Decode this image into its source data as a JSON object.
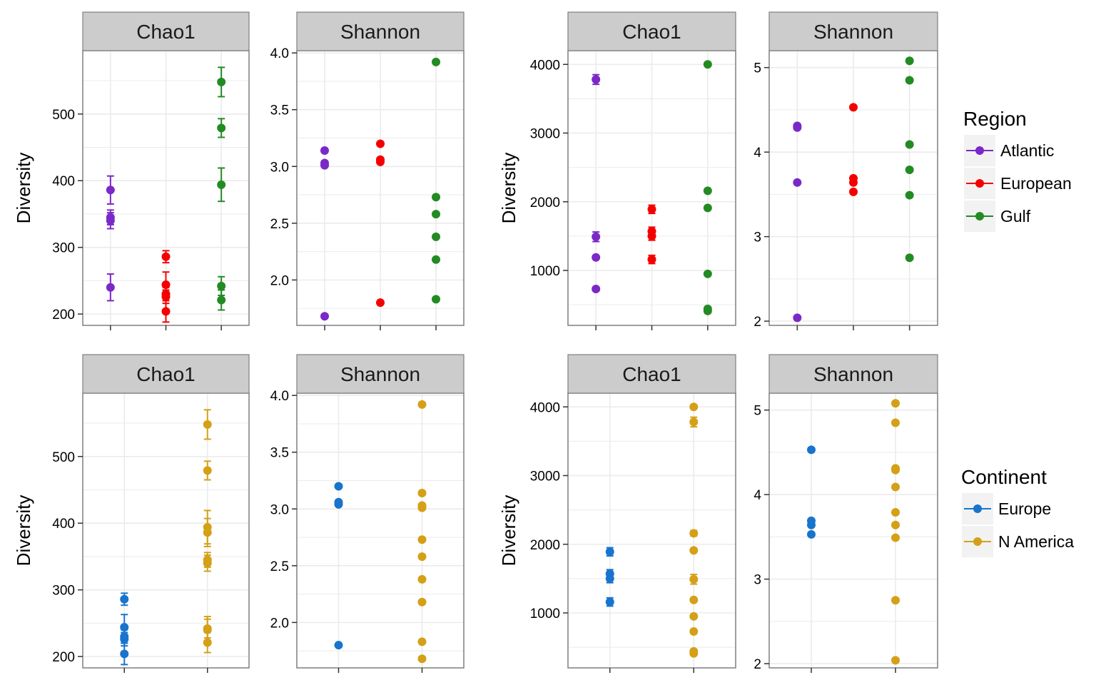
{
  "colors": {
    "Atlantic": "#7B28C8",
    "European": "#F50000",
    "Gulf": "#238B23",
    "Europe": "#1874CD",
    "N America": "#D4A017",
    "strip_bg": "#CCCCCC",
    "panel_border": "#7F7F7F",
    "grid": "#EBEBEB"
  },
  "legends": [
    {
      "title": "Region",
      "entries": [
        "Atlantic",
        "European",
        "Gulf"
      ]
    },
    {
      "title": "Continent",
      "entries": [
        "Europe",
        "N America"
      ]
    }
  ],
  "chart_data": [
    {
      "type": "scatter",
      "strip": "Chao1",
      "ylabel": "Diversity",
      "ylim": [
        183,
        595
      ],
      "yticks": [
        200,
        300,
        400,
        500
      ],
      "ntick_x": 3,
      "points": [
        {
          "g": 1,
          "y": 386,
          "lo": 365,
          "hi": 407,
          "c": "Atlantic"
        },
        {
          "g": 1,
          "y": 345,
          "lo": 334,
          "hi": 356,
          "c": "Atlantic"
        },
        {
          "g": 1,
          "y": 340,
          "lo": 328,
          "hi": 352,
          "c": "Atlantic"
        },
        {
          "g": 1,
          "y": 240,
          "lo": 220,
          "hi": 260,
          "c": "Atlantic"
        },
        {
          "g": 2,
          "y": 286,
          "lo": 277,
          "hi": 295,
          "c": "European"
        },
        {
          "g": 2,
          "y": 244,
          "lo": 225,
          "hi": 263,
          "c": "European"
        },
        {
          "g": 2,
          "y": 230,
          "lo": 220,
          "hi": 240,
          "c": "European"
        },
        {
          "g": 2,
          "y": 226,
          "lo": 216,
          "hi": 236,
          "c": "European"
        },
        {
          "g": 2,
          "y": 204,
          "lo": 188,
          "hi": 220,
          "c": "European"
        },
        {
          "g": 3,
          "y": 548,
          "lo": 526,
          "hi": 570,
          "c": "Gulf"
        },
        {
          "g": 3,
          "y": 479,
          "lo": 465,
          "hi": 493,
          "c": "Gulf"
        },
        {
          "g": 3,
          "y": 394,
          "lo": 369,
          "hi": 419,
          "c": "Gulf"
        },
        {
          "g": 3,
          "y": 242,
          "lo": 228,
          "hi": 256,
          "c": "Gulf"
        },
        {
          "g": 3,
          "y": 221,
          "lo": 206,
          "hi": 236,
          "c": "Gulf"
        }
      ]
    },
    {
      "type": "scatter",
      "strip": "Shannon",
      "ylabel": "",
      "ylim": [
        1.6,
        4.02
      ],
      "yticks": [
        "2.0",
        "2.5",
        "3.0",
        "3.5",
        "4.0"
      ],
      "ntick_x": 3,
      "points": [
        {
          "g": 1,
          "y": 3.14,
          "c": "Atlantic"
        },
        {
          "g": 1,
          "y": 3.03,
          "c": "Atlantic"
        },
        {
          "g": 1,
          "y": 3.01,
          "c": "Atlantic"
        },
        {
          "g": 1,
          "y": 1.68,
          "c": "Atlantic"
        },
        {
          "g": 2,
          "y": 3.2,
          "c": "European"
        },
        {
          "g": 2,
          "y": 3.06,
          "c": "European"
        },
        {
          "g": 2,
          "y": 3.04,
          "c": "European"
        },
        {
          "g": 2,
          "y": 1.8,
          "c": "European"
        },
        {
          "g": 3,
          "y": 3.92,
          "c": "Gulf"
        },
        {
          "g": 3,
          "y": 2.73,
          "c": "Gulf"
        },
        {
          "g": 3,
          "y": 2.58,
          "c": "Gulf"
        },
        {
          "g": 3,
          "y": 2.38,
          "c": "Gulf"
        },
        {
          "g": 3,
          "y": 2.18,
          "c": "Gulf"
        },
        {
          "g": 3,
          "y": 1.83,
          "c": "Gulf"
        }
      ]
    },
    {
      "type": "scatter",
      "strip": "Chao1",
      "ylabel": "Diversity",
      "ylim": [
        200,
        4200
      ],
      "yticks": [
        1000,
        2000,
        3000,
        4000
      ],
      "ntick_x": 3,
      "points": [
        {
          "g": 1,
          "y": 3780,
          "lo": 3710,
          "hi": 3850,
          "c": "Atlantic"
        },
        {
          "g": 1,
          "y": 1490,
          "lo": 1420,
          "hi": 1560,
          "c": "Atlantic"
        },
        {
          "g": 1,
          "y": 1190,
          "c": "Atlantic"
        },
        {
          "g": 1,
          "y": 730,
          "c": "Atlantic"
        },
        {
          "g": 2,
          "y": 1890,
          "lo": 1830,
          "hi": 1950,
          "c": "European"
        },
        {
          "g": 2,
          "y": 1570,
          "lo": 1510,
          "hi": 1630,
          "c": "European"
        },
        {
          "g": 2,
          "y": 1500,
          "lo": 1440,
          "hi": 1560,
          "c": "European"
        },
        {
          "g": 2,
          "y": 1160,
          "lo": 1100,
          "hi": 1220,
          "c": "European"
        },
        {
          "g": 3,
          "y": 4000,
          "c": "Gulf"
        },
        {
          "g": 3,
          "y": 2160,
          "c": "Gulf"
        },
        {
          "g": 3,
          "y": 1910,
          "c": "Gulf"
        },
        {
          "g": 3,
          "y": 950,
          "c": "Gulf"
        },
        {
          "g": 3,
          "y": 440,
          "c": "Gulf"
        },
        {
          "g": 3,
          "y": 410,
          "c": "Gulf"
        }
      ]
    },
    {
      "type": "scatter",
      "strip": "Shannon",
      "ylabel": "",
      "ylim": [
        1.95,
        5.2
      ],
      "yticks": [
        2,
        3,
        4,
        5
      ],
      "ntick_x": 3,
      "points": [
        {
          "g": 1,
          "y": 4.31,
          "c": "Atlantic"
        },
        {
          "g": 1,
          "y": 4.29,
          "c": "Atlantic"
        },
        {
          "g": 1,
          "y": 3.64,
          "c": "Atlantic"
        },
        {
          "g": 1,
          "y": 2.04,
          "c": "Atlantic"
        },
        {
          "g": 2,
          "y": 4.53,
          "c": "European"
        },
        {
          "g": 2,
          "y": 3.69,
          "c": "European"
        },
        {
          "g": 2,
          "y": 3.64,
          "c": "European"
        },
        {
          "g": 2,
          "y": 3.53,
          "c": "European"
        },
        {
          "g": 3,
          "y": 5.08,
          "c": "Gulf"
        },
        {
          "g": 3,
          "y": 4.85,
          "c": "Gulf"
        },
        {
          "g": 3,
          "y": 4.09,
          "c": "Gulf"
        },
        {
          "g": 3,
          "y": 3.79,
          "c": "Gulf"
        },
        {
          "g": 3,
          "y": 3.49,
          "c": "Gulf"
        },
        {
          "g": 3,
          "y": 2.75,
          "c": "Gulf"
        }
      ]
    },
    {
      "type": "scatter",
      "strip": "Chao1",
      "ylabel": "Diversity",
      "ylim": [
        183,
        595
      ],
      "yticks": [
        200,
        300,
        400,
        500
      ],
      "ntick_x": 2,
      "points": [
        {
          "g": 1,
          "y": 286,
          "lo": 277,
          "hi": 295,
          "c": "Europe"
        },
        {
          "g": 1,
          "y": 244,
          "lo": 225,
          "hi": 263,
          "c": "Europe"
        },
        {
          "g": 1,
          "y": 230,
          "lo": 220,
          "hi": 240,
          "c": "Europe"
        },
        {
          "g": 1,
          "y": 226,
          "lo": 216,
          "hi": 236,
          "c": "Europe"
        },
        {
          "g": 1,
          "y": 204,
          "lo": 188,
          "hi": 220,
          "c": "Europe"
        },
        {
          "g": 2,
          "y": 548,
          "lo": 526,
          "hi": 570,
          "c": "N America"
        },
        {
          "g": 2,
          "y": 479,
          "lo": 465,
          "hi": 493,
          "c": "N America"
        },
        {
          "g": 2,
          "y": 394,
          "lo": 369,
          "hi": 419,
          "c": "N America"
        },
        {
          "g": 2,
          "y": 386,
          "lo": 365,
          "hi": 407,
          "c": "N America"
        },
        {
          "g": 2,
          "y": 345,
          "lo": 334,
          "hi": 356,
          "c": "N America"
        },
        {
          "g": 2,
          "y": 340,
          "lo": 328,
          "hi": 352,
          "c": "N America"
        },
        {
          "g": 2,
          "y": 242,
          "lo": 228,
          "hi": 256,
          "c": "N America"
        },
        {
          "g": 2,
          "y": 240,
          "lo": 220,
          "hi": 260,
          "c": "N America"
        },
        {
          "g": 2,
          "y": 221,
          "lo": 206,
          "hi": 236,
          "c": "N America"
        }
      ]
    },
    {
      "type": "scatter",
      "strip": "Shannon",
      "ylabel": "",
      "ylim": [
        1.6,
        4.02
      ],
      "yticks": [
        "2.0",
        "2.5",
        "3.0",
        "3.5",
        "4.0"
      ],
      "ntick_x": 2,
      "points": [
        {
          "g": 1,
          "y": 3.2,
          "c": "Europe"
        },
        {
          "g": 1,
          "y": 3.06,
          "c": "Europe"
        },
        {
          "g": 1,
          "y": 3.04,
          "c": "Europe"
        },
        {
          "g": 1,
          "y": 1.8,
          "c": "Europe"
        },
        {
          "g": 2,
          "y": 3.92,
          "c": "N America"
        },
        {
          "g": 2,
          "y": 3.14,
          "c": "N America"
        },
        {
          "g": 2,
          "y": 3.03,
          "c": "N America"
        },
        {
          "g": 2,
          "y": 3.01,
          "c": "N America"
        },
        {
          "g": 2,
          "y": 2.73,
          "c": "N America"
        },
        {
          "g": 2,
          "y": 2.58,
          "c": "N America"
        },
        {
          "g": 2,
          "y": 2.38,
          "c": "N America"
        },
        {
          "g": 2,
          "y": 2.18,
          "c": "N America"
        },
        {
          "g": 2,
          "y": 1.83,
          "c": "N America"
        },
        {
          "g": 2,
          "y": 1.68,
          "c": "N America"
        }
      ]
    },
    {
      "type": "scatter",
      "strip": "Chao1",
      "ylabel": "Diversity",
      "ylim": [
        200,
        4200
      ],
      "yticks": [
        1000,
        2000,
        3000,
        4000
      ],
      "ntick_x": 2,
      "points": [
        {
          "g": 1,
          "y": 1890,
          "lo": 1830,
          "hi": 1950,
          "c": "Europe"
        },
        {
          "g": 1,
          "y": 1570,
          "lo": 1510,
          "hi": 1630,
          "c": "Europe"
        },
        {
          "g": 1,
          "y": 1500,
          "lo": 1440,
          "hi": 1560,
          "c": "Europe"
        },
        {
          "g": 1,
          "y": 1160,
          "lo": 1100,
          "hi": 1220,
          "c": "Europe"
        },
        {
          "g": 2,
          "y": 4000,
          "c": "N America"
        },
        {
          "g": 2,
          "y": 3780,
          "lo": 3710,
          "hi": 3850,
          "c": "N America"
        },
        {
          "g": 2,
          "y": 2160,
          "lo": 2120,
          "hi": 2200,
          "c": "N America"
        },
        {
          "g": 2,
          "y": 1910,
          "c": "N America"
        },
        {
          "g": 2,
          "y": 1490,
          "lo": 1420,
          "hi": 1560,
          "c": "N America"
        },
        {
          "g": 2,
          "y": 1190,
          "c": "N America"
        },
        {
          "g": 2,
          "y": 950,
          "c": "N America"
        },
        {
          "g": 2,
          "y": 730,
          "c": "N America"
        },
        {
          "g": 2,
          "y": 440,
          "c": "N America"
        },
        {
          "g": 2,
          "y": 410,
          "c": "N America"
        }
      ]
    },
    {
      "type": "scatter",
      "strip": "Shannon",
      "ylabel": "",
      "ylim": [
        1.95,
        5.2
      ],
      "yticks": [
        2,
        3,
        4,
        5
      ],
      "ntick_x": 2,
      "points": [
        {
          "g": 1,
          "y": 4.53,
          "c": "Europe"
        },
        {
          "g": 1,
          "y": 3.69,
          "c": "Europe"
        },
        {
          "g": 1,
          "y": 3.64,
          "c": "Europe"
        },
        {
          "g": 1,
          "y": 3.53,
          "c": "Europe"
        },
        {
          "g": 2,
          "y": 5.08,
          "c": "N America"
        },
        {
          "g": 2,
          "y": 4.85,
          "c": "N America"
        },
        {
          "g": 2,
          "y": 4.31,
          "c": "N America"
        },
        {
          "g": 2,
          "y": 4.29,
          "c": "N America"
        },
        {
          "g": 2,
          "y": 4.09,
          "c": "N America"
        },
        {
          "g": 2,
          "y": 3.79,
          "c": "N America"
        },
        {
          "g": 2,
          "y": 3.64,
          "c": "N America"
        },
        {
          "g": 2,
          "y": 3.49,
          "c": "N America"
        },
        {
          "g": 2,
          "y": 2.75,
          "c": "N America"
        },
        {
          "g": 2,
          "y": 2.04,
          "c": "N America"
        }
      ]
    }
  ]
}
